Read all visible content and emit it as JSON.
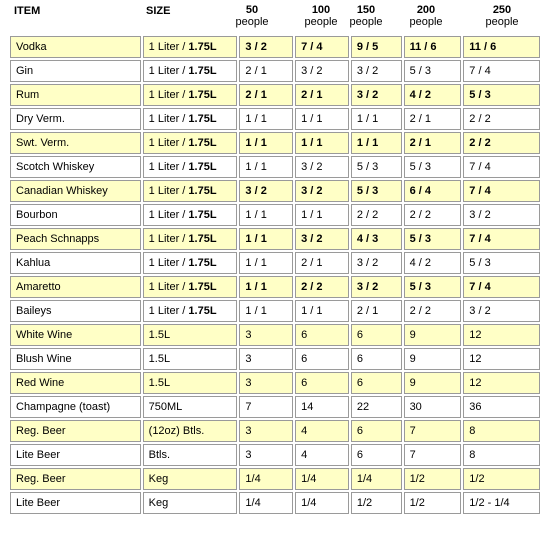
{
  "header": {
    "item": "ITEM",
    "size": "SIZE",
    "columns": [
      {
        "count": "50",
        "unit": "people"
      },
      {
        "count": "100",
        "unit": "people"
      },
      {
        "count": "150",
        "unit": "people"
      },
      {
        "count": "200",
        "unit": "people"
      },
      {
        "count": "250",
        "unit": "people"
      }
    ]
  },
  "colors": {
    "highlight_row": "#ffffc6",
    "plain_row": "#ffffff",
    "border": "#9a9a9a"
  },
  "rows": [
    {
      "item": "Vodka",
      "size": "1 Liter / 1.75L",
      "v": [
        "3 / 2",
        "7 / 4",
        "9 / 5",
        "11 / 6",
        "11 / 6"
      ]
    },
    {
      "item": "Gin",
      "size": "1 Liter / 1.75L",
      "v": [
        "2 / 1",
        "3 / 2",
        "3 / 2",
        "5 / 3",
        "7 / 4"
      ]
    },
    {
      "item": "Rum",
      "size": "1 Liter / 1.75L",
      "v": [
        "2 / 1",
        "2 / 1",
        "3 / 2",
        "4 / 2",
        "5 / 3"
      ]
    },
    {
      "item": "Dry Verm.",
      "size": "1 Liter / 1.75L",
      "v": [
        "1 / 1",
        "1 / 1",
        "1 / 1",
        "2 / 1",
        "2 / 2"
      ]
    },
    {
      "item": "Swt. Verm.",
      "size": "1 Liter / 1.75L",
      "v": [
        "1 / 1",
        "1 / 1",
        "1 / 1",
        "2 / 1",
        "2 / 2"
      ]
    },
    {
      "item": "Scotch Whiskey",
      "size": "1 Liter / 1.75L",
      "v": [
        "1 / 1",
        "3 / 2",
        "5 / 3",
        "5 / 3",
        "7 / 4"
      ]
    },
    {
      "item": "Canadian Whiskey",
      "size": "1 Liter / 1.75L",
      "v": [
        "3 / 2",
        "3 / 2",
        "5 / 3",
        "6 / 4",
        "7 / 4"
      ]
    },
    {
      "item": "Bourbon",
      "size": "1 Liter / 1.75L",
      "v": [
        "1 / 1",
        "1 / 1",
        "2 / 2",
        "2 / 2",
        "3 / 2"
      ]
    },
    {
      "item": "Peach Schnapps",
      "size": "1 Liter / 1.75L",
      "v": [
        "1 / 1",
        "3 / 2",
        "4 / 3",
        "5 / 3",
        "7 / 4"
      ]
    },
    {
      "item": "Kahlua",
      "size": "1 Liter / 1.75L",
      "v": [
        "1 / 1",
        "2 / 1",
        "3 / 2",
        "4 / 2",
        "5 / 3"
      ]
    },
    {
      "item": "Amaretto",
      "size": "1 Liter / 1.75L",
      "v": [
        "1 / 1",
        "2 / 2",
        "3 / 2",
        "5 / 3",
        "7 / 4"
      ]
    },
    {
      "item": "Baileys",
      "size": "1 Liter / 1.75L",
      "v": [
        "1 / 1",
        "1 / 1",
        "2 / 1",
        "2 / 2",
        "3 / 2"
      ]
    },
    {
      "item": "White Wine",
      "size": "1.5L",
      "v": [
        "3",
        "6",
        "6",
        "9",
        "12"
      ]
    },
    {
      "item": "Blush Wine",
      "size": "1.5L",
      "v": [
        "3",
        "6",
        "6",
        "9",
        "12"
      ]
    },
    {
      "item": "Red Wine",
      "size": "1.5L",
      "v": [
        "3",
        "6",
        "6",
        "9",
        "12"
      ]
    },
    {
      "item": "Champagne (toast)",
      "size": "750ML",
      "v": [
        "7",
        "14",
        "22",
        "30",
        "36"
      ]
    },
    {
      "item": "Reg. Beer",
      "size": "(12oz) Btls.",
      "v": [
        "3",
        "4",
        "6",
        "7",
        "8"
      ]
    },
    {
      "item": "Lite Beer",
      "size": "Btls.",
      "v": [
        "3",
        "4",
        "6",
        "7",
        "8"
      ]
    },
    {
      "item": "Reg. Beer",
      "size": "Keg",
      "v": [
        "1/4",
        "1/4",
        "1/4",
        "1/2",
        "1/2"
      ]
    },
    {
      "item": "Lite Beer",
      "size": "Keg",
      "v": [
        "1/4",
        "1/4",
        "1/2",
        "1/2",
        "1/2 - 1/4"
      ]
    }
  ]
}
